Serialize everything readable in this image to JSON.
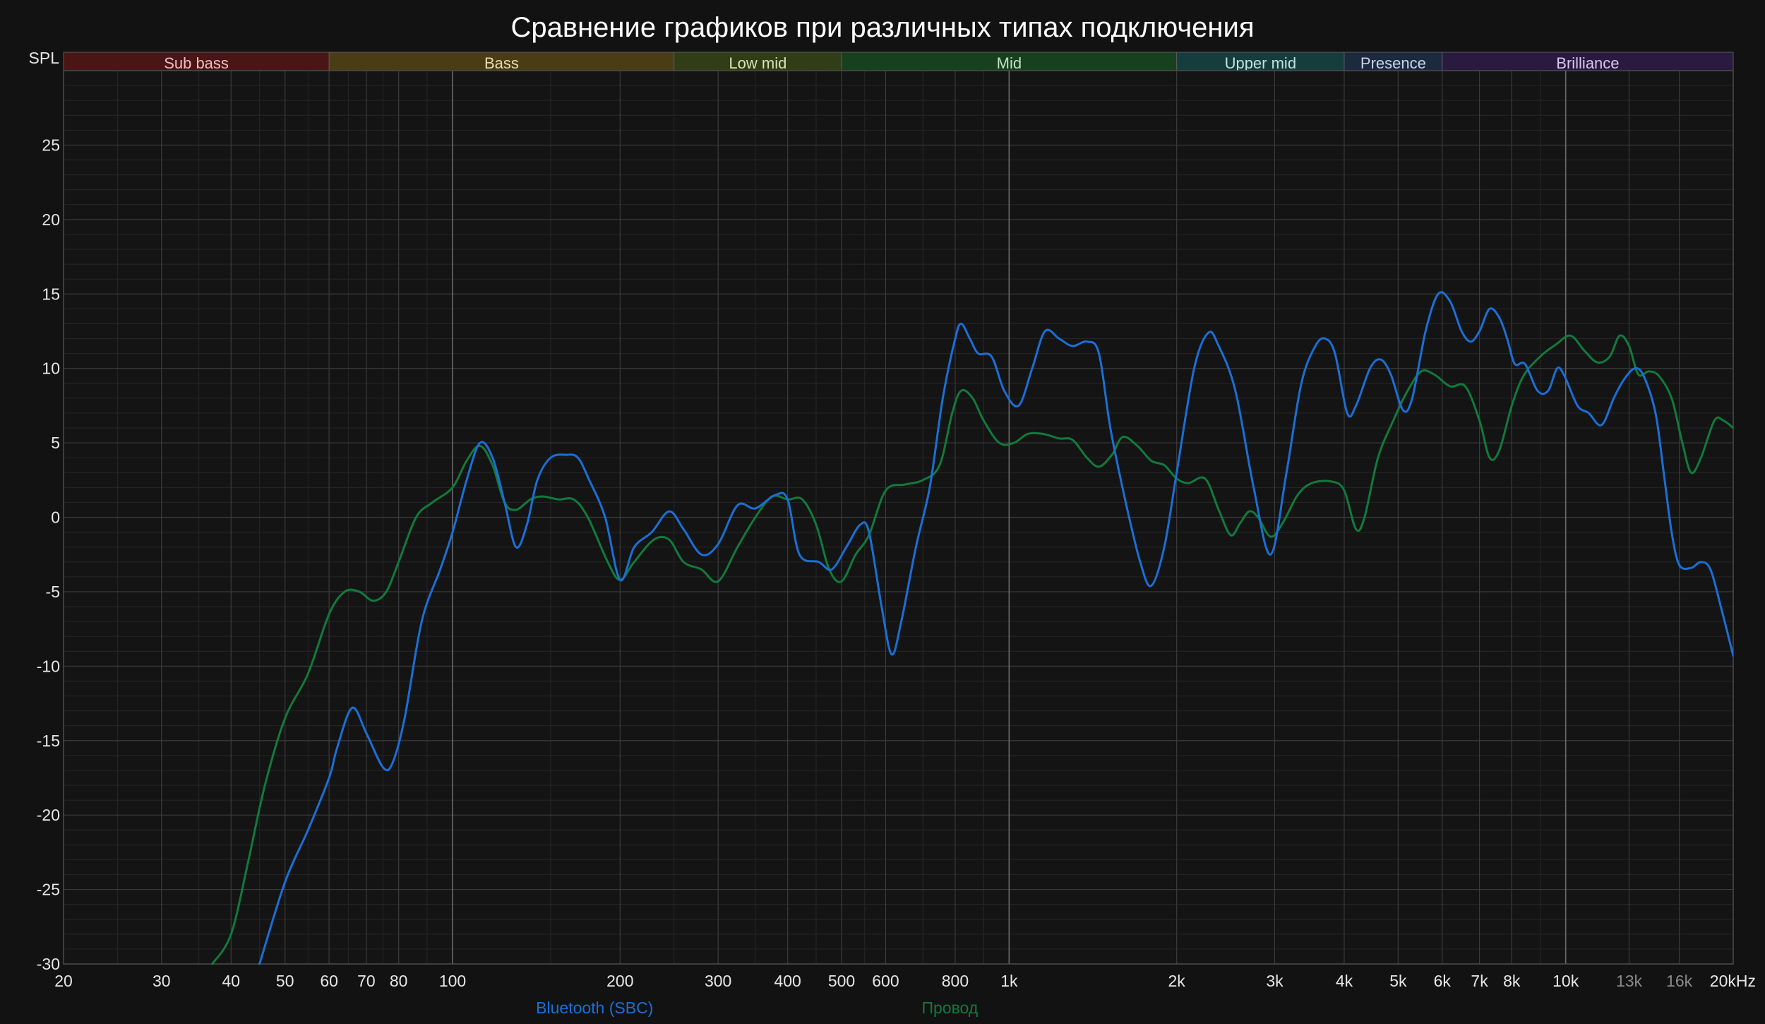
{
  "title": "Сравнение графиков при различных типах подключения",
  "y_unit_label": "SPL",
  "colors": {
    "background": "#121212",
    "plot_background": "#141414",
    "grid_major": "#3a3a3a",
    "grid_minor": "#262626",
    "series_bluetooth": "#1a6fd6",
    "series_wire": "#117a3c"
  },
  "bands": [
    {
      "label": "Sub bass",
      "from": 20,
      "to": 60,
      "color": "#4a1515",
      "text": "#e8c0c0"
    },
    {
      "label": "Bass",
      "from": 60,
      "to": 250,
      "color": "#4a3d16",
      "text": "#e8dcb0"
    },
    {
      "label": "Low mid",
      "from": 250,
      "to": 500,
      "color": "#313d16",
      "text": "#d6e2b2"
    },
    {
      "label": "Mid",
      "from": 500,
      "to": 2000,
      "color": "#17401f",
      "text": "#bfe0c4"
    },
    {
      "label": "Upper mid",
      "from": 2000,
      "to": 4000,
      "color": "#163d3d",
      "text": "#c0e0e0"
    },
    {
      "label": "Presence",
      "from": 4000,
      "to": 6000,
      "color": "#1c2a40",
      "text": "#c8d4ea"
    },
    {
      "label": "Brilliance",
      "from": 6000,
      "to": 20000,
      "color": "#2a1a40",
      "text": "#d6c8ea"
    }
  ],
  "chart_data": {
    "type": "line",
    "title": "Сравнение графиков при различных типах подключения",
    "ylabel": "SPL",
    "xlabel": "",
    "x_scale": "log",
    "xlim": [
      20,
      20000
    ],
    "ylim": [
      -30,
      30
    ],
    "grid": true,
    "legend_placement": "bottom",
    "x_ticks": [
      {
        "value": 20,
        "label": "20"
      },
      {
        "value": 30,
        "label": "30"
      },
      {
        "value": 40,
        "label": "40"
      },
      {
        "value": 50,
        "label": "50"
      },
      {
        "value": 60,
        "label": "60"
      },
      {
        "value": 70,
        "label": "70"
      },
      {
        "value": 80,
        "label": "80"
      },
      {
        "value": 100,
        "label": "100"
      },
      {
        "value": 200,
        "label": "200"
      },
      {
        "value": 300,
        "label": "300"
      },
      {
        "value": 400,
        "label": "400"
      },
      {
        "value": 500,
        "label": "500"
      },
      {
        "value": 600,
        "label": "600"
      },
      {
        "value": 800,
        "label": "800"
      },
      {
        "value": 1000,
        "label": "1k"
      },
      {
        "value": 2000,
        "label": "2k"
      },
      {
        "value": 3000,
        "label": "3k"
      },
      {
        "value": 4000,
        "label": "4k"
      },
      {
        "value": 5000,
        "label": "5k"
      },
      {
        "value": 6000,
        "label": "6k"
      },
      {
        "value": 7000,
        "label": "7k"
      },
      {
        "value": 8000,
        "label": "8k"
      },
      {
        "value": 10000,
        "label": "10k"
      },
      {
        "value": 13000,
        "label": "13k",
        "dim": true
      },
      {
        "value": 16000,
        "label": "16k",
        "dim": true
      },
      {
        "value": 20000,
        "label": "20kHz"
      }
    ],
    "y_ticks": [
      25,
      20,
      15,
      10,
      5,
      0,
      -5,
      -10,
      -15,
      -20,
      -25,
      -30
    ],
    "series": [
      {
        "name": "Bluetooth (SBC)",
        "color": "#1a6fd6",
        "points": [
          [
            45,
            -30
          ],
          [
            50,
            -24.5
          ],
          [
            55,
            -21
          ],
          [
            60,
            -17.5
          ],
          [
            62,
            -15.5
          ],
          [
            66,
            -12.8
          ],
          [
            70,
            -14.5
          ],
          [
            75,
            -16.8
          ],
          [
            78,
            -16.5
          ],
          [
            82,
            -13.5
          ],
          [
            88,
            -7
          ],
          [
            95,
            -3.5
          ],
          [
            100,
            -1
          ],
          [
            106,
            2.5
          ],
          [
            112,
            5
          ],
          [
            118,
            4
          ],
          [
            124,
            1
          ],
          [
            130,
            -2
          ],
          [
            136,
            -0.5
          ],
          [
            142,
            2.5
          ],
          [
            150,
            4
          ],
          [
            160,
            4.2
          ],
          [
            168,
            4
          ],
          [
            176,
            2.5
          ],
          [
            188,
            0
          ],
          [
            200,
            -4.2
          ],
          [
            212,
            -2
          ],
          [
            228,
            -1
          ],
          [
            245,
            0.4
          ],
          [
            260,
            -0.8
          ],
          [
            280,
            -2.5
          ],
          [
            300,
            -1.8
          ],
          [
            325,
            0.8
          ],
          [
            350,
            0.6
          ],
          [
            380,
            1.5
          ],
          [
            400,
            1.2
          ],
          [
            420,
            -2.5
          ],
          [
            455,
            -3
          ],
          [
            480,
            -3.5
          ],
          [
            510,
            -2
          ],
          [
            540,
            -0.5
          ],
          [
            560,
            -1
          ],
          [
            590,
            -6
          ],
          [
            615,
            -9.2
          ],
          [
            640,
            -7
          ],
          [
            680,
            -2
          ],
          [
            720,
            2
          ],
          [
            760,
            8
          ],
          [
            800,
            12
          ],
          [
            820,
            13
          ],
          [
            850,
            12
          ],
          [
            880,
            11
          ],
          [
            930,
            10.8
          ],
          [
            980,
            8.5
          ],
          [
            1040,
            7.5
          ],
          [
            1100,
            10
          ],
          [
            1160,
            12.5
          ],
          [
            1230,
            12
          ],
          [
            1300,
            11.5
          ],
          [
            1380,
            11.8
          ],
          [
            1450,
            11
          ],
          [
            1520,
            6
          ],
          [
            1620,
            1
          ],
          [
            1720,
            -3
          ],
          [
            1800,
            -4.6
          ],
          [
            1900,
            -2
          ],
          [
            2000,
            3
          ],
          [
            2150,
            10
          ],
          [
            2280,
            12.4
          ],
          [
            2380,
            11.5
          ],
          [
            2550,
            8.5
          ],
          [
            2750,
            2
          ],
          [
            2950,
            -2.5
          ],
          [
            3150,
            3
          ],
          [
            3350,
            9
          ],
          [
            3550,
            11.5
          ],
          [
            3700,
            12
          ],
          [
            3850,
            11
          ],
          [
            4050,
            7
          ],
          [
            4200,
            7.5
          ],
          [
            4450,
            10
          ],
          [
            4650,
            10.6
          ],
          [
            4850,
            9.6
          ],
          [
            5100,
            7.2
          ],
          [
            5300,
            8
          ],
          [
            5600,
            12.5
          ],
          [
            5900,
            15
          ],
          [
            6200,
            14.5
          ],
          [
            6500,
            12.5
          ],
          [
            6750,
            11.8
          ],
          [
            7000,
            12.5
          ],
          [
            7300,
            14
          ],
          [
            7600,
            13.4
          ],
          [
            7850,
            12
          ],
          [
            8100,
            10.3
          ],
          [
            8450,
            10.3
          ],
          [
            8900,
            8.5
          ],
          [
            9300,
            8.5
          ],
          [
            9650,
            10
          ],
          [
            9950,
            9.5
          ],
          [
            10500,
            7.5
          ],
          [
            11000,
            7
          ],
          [
            11600,
            6.2
          ],
          [
            12200,
            8
          ],
          [
            12700,
            9.2
          ],
          [
            13300,
            10
          ],
          [
            13800,
            9.5
          ],
          [
            14500,
            7
          ],
          [
            15000,
            3
          ],
          [
            15500,
            -1
          ],
          [
            16000,
            -3.2
          ],
          [
            16800,
            -3.4
          ],
          [
            17500,
            -3
          ],
          [
            18200,
            -3.5
          ],
          [
            19000,
            -6
          ],
          [
            20000,
            -9.3
          ]
        ]
      },
      {
        "name": "Провод",
        "color": "#117a3c",
        "points": [
          [
            37,
            -30
          ],
          [
            40,
            -28
          ],
          [
            43,
            -23
          ],
          [
            46,
            -18
          ],
          [
            50,
            -13.5
          ],
          [
            55,
            -10.5
          ],
          [
            60,
            -6.5
          ],
          [
            64,
            -5
          ],
          [
            68,
            -5
          ],
          [
            72,
            -5.6
          ],
          [
            76,
            -5
          ],
          [
            80,
            -3
          ],
          [
            86,
            0
          ],
          [
            92,
            1
          ],
          [
            100,
            2
          ],
          [
            106,
            3.8
          ],
          [
            112,
            4.8
          ],
          [
            118,
            3.5
          ],
          [
            124,
            1
          ],
          [
            130,
            0.5
          ],
          [
            138,
            1.2
          ],
          [
            145,
            1.4
          ],
          [
            155,
            1.2
          ],
          [
            165,
            1.2
          ],
          [
            175,
            0
          ],
          [
            190,
            -3
          ],
          [
            200,
            -4.2
          ],
          [
            212,
            -3
          ],
          [
            230,
            -1.5
          ],
          [
            245,
            -1.5
          ],
          [
            260,
            -3
          ],
          [
            280,
            -3.5
          ],
          [
            300,
            -4.3
          ],
          [
            325,
            -2
          ],
          [
            350,
            0
          ],
          [
            375,
            1.4
          ],
          [
            400,
            1.2
          ],
          [
            425,
            1.2
          ],
          [
            450,
            -0.5
          ],
          [
            475,
            -3.5
          ],
          [
            500,
            -4.3
          ],
          [
            530,
            -2.5
          ],
          [
            560,
            -1.2
          ],
          [
            600,
            1.8
          ],
          [
            650,
            2.2
          ],
          [
            700,
            2.5
          ],
          [
            750,
            3.5
          ],
          [
            790,
            7
          ],
          [
            820,
            8.5
          ],
          [
            860,
            8
          ],
          [
            900,
            6.5
          ],
          [
            960,
            5
          ],
          [
            1020,
            5
          ],
          [
            1080,
            5.6
          ],
          [
            1150,
            5.6
          ],
          [
            1230,
            5.3
          ],
          [
            1300,
            5.2
          ],
          [
            1380,
            4
          ],
          [
            1450,
            3.4
          ],
          [
            1530,
            4.2
          ],
          [
            1600,
            5.4
          ],
          [
            1700,
            4.8
          ],
          [
            1800,
            3.8
          ],
          [
            1900,
            3.5
          ],
          [
            2000,
            2.6
          ],
          [
            2100,
            2.3
          ],
          [
            2250,
            2.6
          ],
          [
            2380,
            0.5
          ],
          [
            2500,
            -1.2
          ],
          [
            2600,
            -0.4
          ],
          [
            2700,
            0.4
          ],
          [
            2800,
            0
          ],
          [
            2950,
            -1.3
          ],
          [
            3100,
            -0.4
          ],
          [
            3300,
            1.5
          ],
          [
            3500,
            2.3
          ],
          [
            3800,
            2.4
          ],
          [
            4000,
            1.8
          ],
          [
            4200,
            -0.8
          ],
          [
            4350,
            0
          ],
          [
            4600,
            4
          ],
          [
            4900,
            6.5
          ],
          [
            5200,
            8.5
          ],
          [
            5500,
            9.8
          ],
          [
            5800,
            9.6
          ],
          [
            6200,
            8.8
          ],
          [
            6600,
            8.8
          ],
          [
            7000,
            6.5
          ],
          [
            7300,
            4
          ],
          [
            7600,
            4.5
          ],
          [
            8000,
            7.5
          ],
          [
            8400,
            9.5
          ],
          [
            9000,
            10.8
          ],
          [
            9600,
            11.6
          ],
          [
            10200,
            12.2
          ],
          [
            10800,
            11.2
          ],
          [
            11400,
            10.4
          ],
          [
            12000,
            10.8
          ],
          [
            12500,
            12.2
          ],
          [
            13000,
            11.5
          ],
          [
            13500,
            9.6
          ],
          [
            14100,
            9.8
          ],
          [
            14700,
            9.5
          ],
          [
            15500,
            8
          ],
          [
            16200,
            5
          ],
          [
            16800,
            3
          ],
          [
            17500,
            4
          ],
          [
            18500,
            6.5
          ],
          [
            19200,
            6.5
          ],
          [
            20000,
            6
          ]
        ]
      }
    ]
  }
}
